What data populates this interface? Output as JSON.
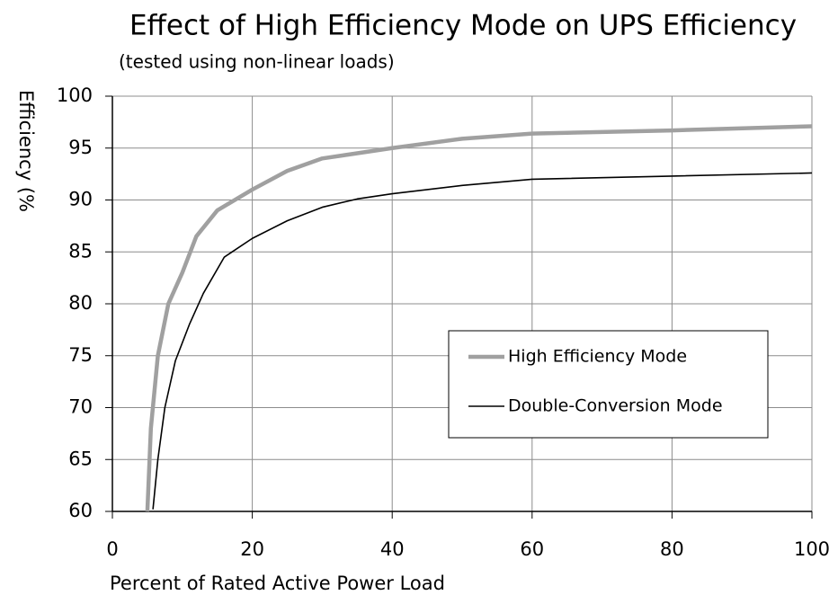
{
  "chart_data": {
    "type": "line",
    "title": "Effect of High Efficiency Mode on UPS Efficiency",
    "subtitle": "(tested using non-linear loads)",
    "x_label": "Percent of Rated Active Power Load",
    "y_label": "Efficiency (%",
    "xlim": [
      0,
      100
    ],
    "xticks": [
      0,
      20,
      40,
      60,
      80,
      100
    ],
    "ylim": [
      60,
      100
    ],
    "yticks": [
      60,
      65,
      70,
      75,
      80,
      85,
      90,
      95,
      100
    ],
    "grid": true,
    "legend": "center right",
    "series": [
      {
        "name": "High Efficiency Mode",
        "color": "#a0a0a0",
        "x": [
          5,
          5.5,
          6.5,
          8,
          10,
          12,
          15,
          20,
          25,
          30,
          40,
          50,
          60,
          80,
          100
        ],
        "values": [
          60,
          68,
          75,
          80,
          83,
          86.5,
          89,
          91,
          92.8,
          94,
          95,
          95.9,
          96.4,
          96.7,
          97.1
        ]
      },
      {
        "name": "Double-Conversion Mode",
        "color": "#000000",
        "x": [
          5.8,
          6.5,
          7.5,
          9,
          11,
          13,
          16,
          20,
          25,
          30,
          35,
          40,
          50,
          60,
          80,
          100
        ],
        "values": [
          60.2,
          65,
          70,
          74.5,
          78,
          81,
          84.5,
          86.3,
          88,
          89.3,
          90.1,
          90.6,
          91.4,
          92,
          92.3,
          92.6
        ]
      }
    ]
  }
}
